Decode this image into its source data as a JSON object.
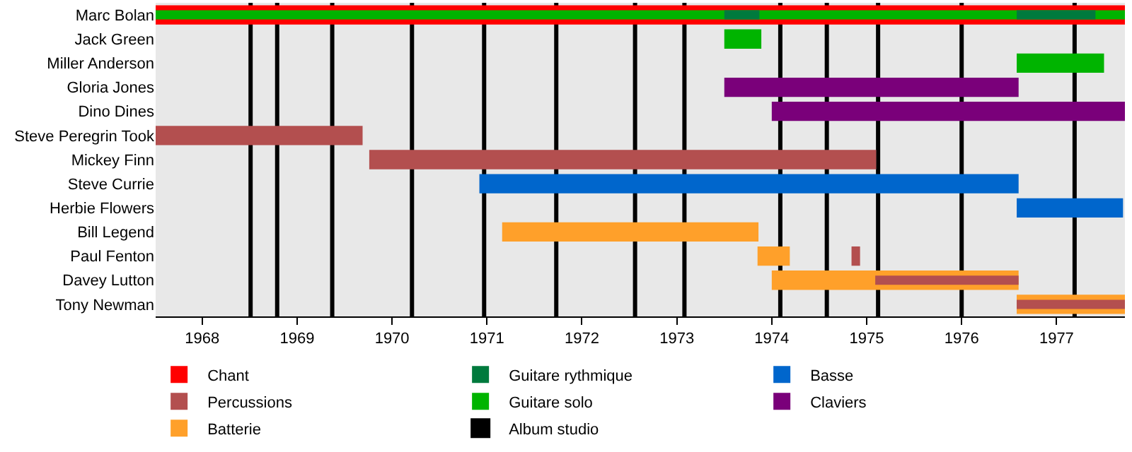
{
  "chart_data": {
    "type": "bar",
    "orientation": "horizontal",
    "legend": "bottom",
    "categories": [
      "Marc Bolan",
      "Jack Green",
      "Miller Anderson",
      "Gloria Jones",
      "Dino Dines",
      "Steve Peregrin Took",
      "Mickey Finn",
      "Steve Currie",
      "Herbie Flowers",
      "Bill Legend",
      "Paul Fenton",
      "Davey Lutton",
      "Tony Newman"
    ],
    "xlim": [
      1967.51,
      1977.72
    ],
    "xticks": [
      1968,
      1969,
      1970,
      1971,
      1972,
      1973,
      1974,
      1975,
      1976,
      1977
    ],
    "series": [
      {
        "name": "Chant",
        "color": "#ff0000",
        "base": [
          1967.51,
          null,
          null,
          null,
          null,
          null,
          null,
          null,
          null,
          null,
          null,
          null,
          null
        ],
        "values": [
          10.21,
          null,
          null,
          null,
          null,
          null,
          null,
          null,
          null,
          null,
          null,
          null,
          null
        ]
      },
      {
        "name": "Guitare solo",
        "color": "#00b400",
        "base": [
          1967.51,
          1973.5,
          1976.58,
          null,
          null,
          null,
          null,
          null,
          null,
          null,
          null,
          null,
          null
        ],
        "values": [
          10.21,
          0.39,
          0.92,
          null,
          null,
          null,
          null,
          null,
          null,
          null,
          null,
          null,
          null
        ]
      },
      {
        "name": "Guitare rythmique",
        "color": "#007a3d",
        "base": [
          1973.5,
          null,
          null,
          null,
          null,
          null,
          null,
          null,
          null,
          null,
          null,
          null,
          null
        ],
        "values": [
          0.37,
          null,
          null,
          null,
          null,
          null,
          null,
          null,
          null,
          null,
          null,
          null,
          null
        ]
      },
      {
        "color": "#007a3d",
        "base": [
          1976.58,
          null,
          null,
          null,
          null,
          null,
          null,
          null,
          null,
          null,
          null,
          null,
          null
        ],
        "values": [
          0.83,
          null,
          null,
          null,
          null,
          null,
          null,
          null,
          null,
          null,
          null,
          null,
          null
        ]
      },
      {
        "name": "Claviers",
        "color": "#7a007a",
        "base": [
          null,
          null,
          null,
          1973.5,
          1974.0,
          null,
          null,
          null,
          null,
          null,
          null,
          null,
          null
        ],
        "values": [
          null,
          null,
          null,
          3.1,
          3.72,
          null,
          null,
          null,
          null,
          null,
          null,
          null,
          null
        ]
      },
      {
        "name": "Basse",
        "color": "#0066cc",
        "base": [
          null,
          null,
          null,
          null,
          null,
          null,
          null,
          1970.92,
          1976.58,
          null,
          null,
          null,
          null
        ],
        "values": [
          null,
          null,
          null,
          null,
          null,
          null,
          null,
          5.68,
          1.12,
          null,
          null,
          null,
          null
        ]
      },
      {
        "name": "Batterie",
        "color": "#ffa02a",
        "base": [
          null,
          null,
          null,
          null,
          null,
          null,
          null,
          null,
          null,
          1971.16,
          1973.85,
          1974.0,
          1976.58
        ],
        "values": [
          null,
          null,
          null,
          null,
          null,
          null,
          null,
          null,
          null,
          2.7,
          0.34,
          2.6,
          1.14
        ]
      },
      {
        "name": "Percussions",
        "color": "#b34f4f",
        "base": [
          null,
          null,
          null,
          null,
          null,
          1967.51,
          1969.76,
          null,
          null,
          null,
          1974.84,
          1975.09,
          1976.58
        ],
        "values": [
          null,
          null,
          null,
          null,
          null,
          2.18,
          5.34,
          null,
          null,
          null,
          0.09,
          1.51,
          1.14
        ]
      }
    ],
    "ref_lines": [
      {
        "axis": "x",
        "value": 1968.51,
        "label": "Album studio",
        "color": "#000000"
      },
      {
        "axis": "x",
        "value": 1968.79,
        "color": "#000000"
      },
      {
        "axis": "x",
        "value": 1969.37,
        "color": "#000000"
      },
      {
        "axis": "x",
        "value": 1970.21,
        "color": "#000000"
      },
      {
        "axis": "x",
        "value": 1970.97,
        "color": "#000000"
      },
      {
        "axis": "x",
        "value": 1971.73,
        "color": "#000000"
      },
      {
        "axis": "x",
        "value": 1972.56,
        "color": "#000000"
      },
      {
        "axis": "x",
        "value": 1973.08,
        "color": "#000000"
      },
      {
        "axis": "x",
        "value": 1974.09,
        "color": "#000000"
      },
      {
        "axis": "x",
        "value": 1974.58,
        "color": "#000000"
      },
      {
        "axis": "x",
        "value": 1975.12,
        "color": "#000000"
      },
      {
        "axis": "x",
        "value": 1976.0,
        "color": "#000000"
      },
      {
        "axis": "x",
        "value": 1977.19,
        "color": "#000000"
      }
    ]
  }
}
